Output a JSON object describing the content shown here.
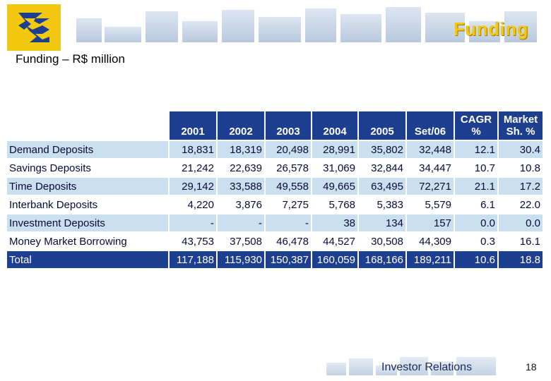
{
  "header": {
    "title": "Funding",
    "subtitle": "Funding – R$ million"
  },
  "table": {
    "columns": [
      "2001",
      "2002",
      "2003",
      "2004",
      "2005",
      "Set/06",
      "CAGR\n%",
      "Market\nSh. %"
    ],
    "rows": [
      {
        "label": "Demand Deposits",
        "values": [
          "18,831",
          "18,319",
          "20,498",
          "28,991",
          "35,802",
          "32,448",
          "12.1",
          "30.4"
        ]
      },
      {
        "label": "Savings Deposits",
        "values": [
          "21,242",
          "22,639",
          "26,578",
          "31,069",
          "32,844",
          "34,447",
          "10.7",
          "10.8"
        ]
      },
      {
        "label": "Time Deposits",
        "values": [
          "29,142",
          "33,588",
          "49,558",
          "49,665",
          "63,495",
          "72,271",
          "21.1",
          "17.2"
        ]
      },
      {
        "label": "Interbank Deposits",
        "values": [
          "4,220",
          "3,876",
          "7,275",
          "5,768",
          "5,383",
          "5,579",
          "6.1",
          "22.0"
        ]
      },
      {
        "label": "Investment Deposits",
        "values": [
          "-",
          "-",
          "-",
          "38",
          "134",
          "157",
          "0.0",
          "0.0"
        ]
      },
      {
        "label": "Money Market Borrowing",
        "values": [
          "43,753",
          "37,508",
          "46,478",
          "44,527",
          "30,508",
          "44,309",
          "0.3",
          "16.1"
        ]
      }
    ],
    "total": {
      "label": "Total",
      "values": [
        "117,188",
        "115,930",
        "150,387",
        "160,059",
        "168,166",
        "189,211",
        "10.6",
        "18.8"
      ]
    }
  },
  "footer": {
    "label": "Investor Relations",
    "page": "18"
  },
  "colors": {
    "header_blue": "#1e3f8f",
    "band_blue": "#cbe0ee",
    "gold": "#f2c811"
  },
  "logo": {
    "icon": "banco-do-brasil-logo-icon"
  }
}
